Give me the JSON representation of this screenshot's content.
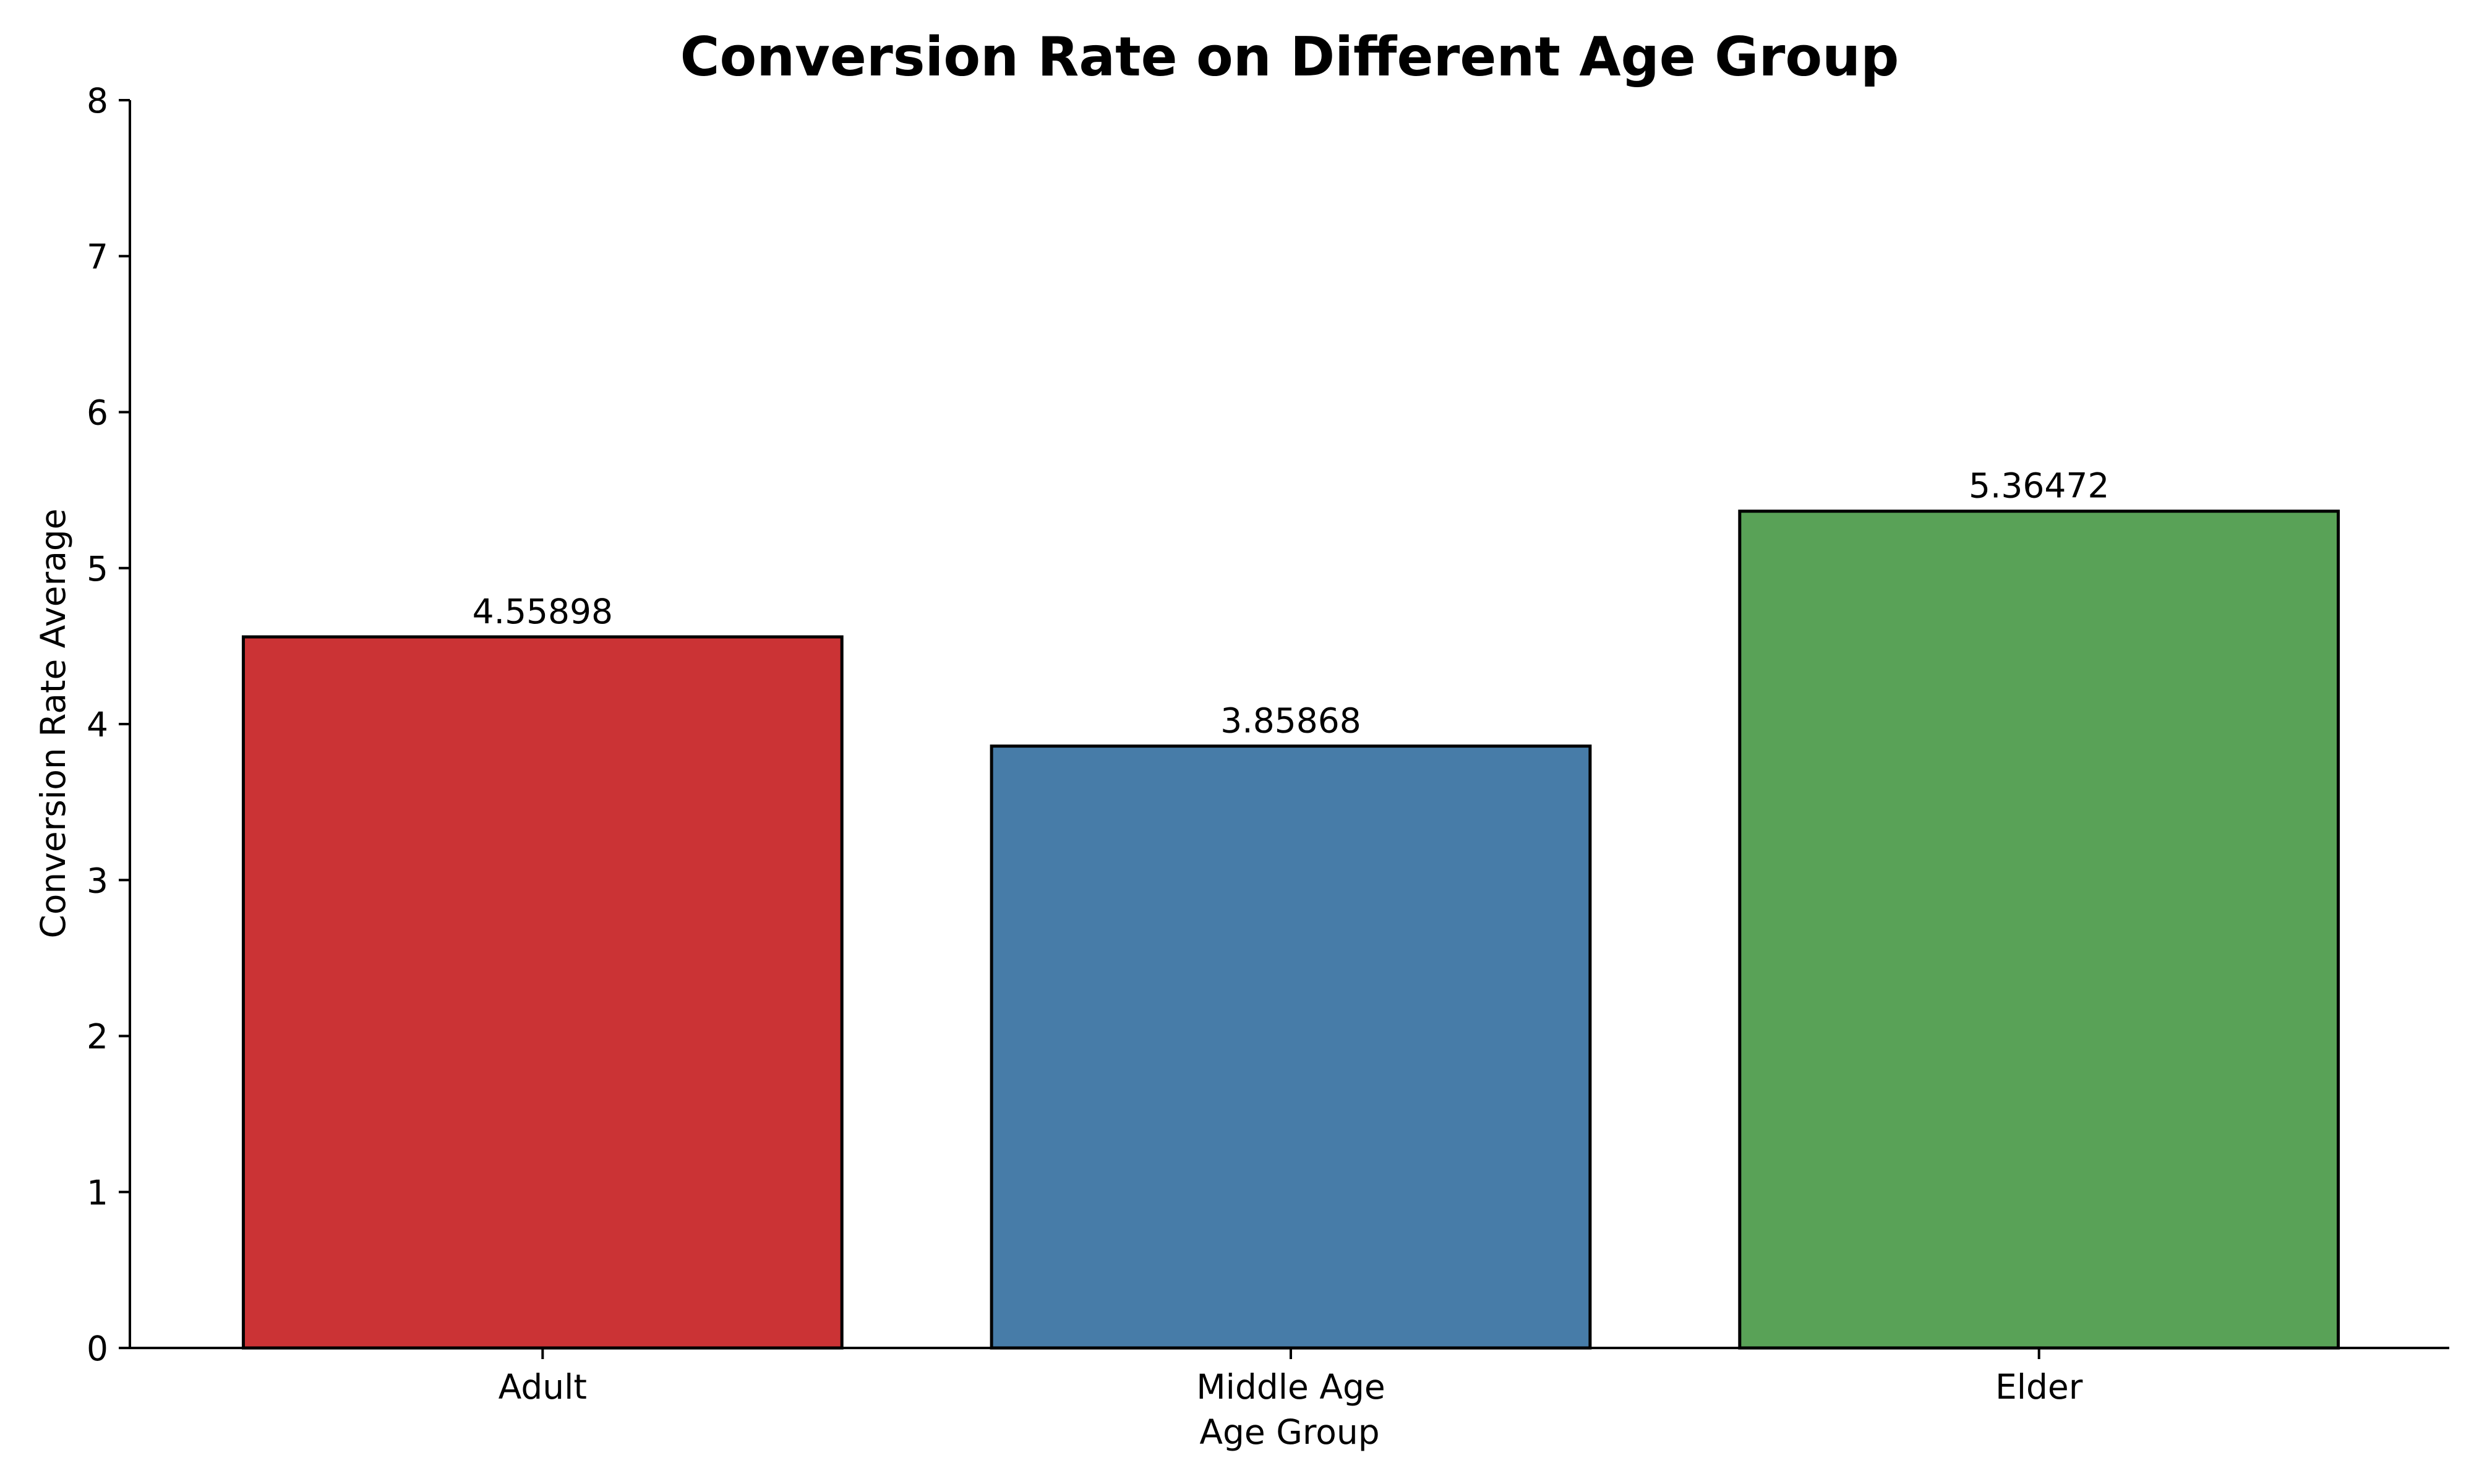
{
  "chart_data": {
    "type": "bar",
    "title": "Conversion Rate on Different Age Group",
    "xlabel": "Age Group",
    "ylabel": "Conversion Rate Average",
    "categories": [
      "Adult",
      "Middle Age",
      "Elder"
    ],
    "values": [
      4.55898,
      3.85868,
      5.36472
    ],
    "data_labels": [
      "4.55898",
      "3.85868",
      "5.36472"
    ],
    "colors": [
      "#cb3335",
      "#477ca8",
      "#59a257"
    ],
    "ylim": [
      0,
      8
    ],
    "yticks": [
      0,
      1,
      2,
      3,
      4,
      5,
      6,
      7,
      8
    ],
    "ytick_labels": [
      "0",
      "1",
      "2",
      "3",
      "4",
      "5",
      "6",
      "7",
      "8"
    ],
    "grid": false,
    "legend": "none"
  }
}
